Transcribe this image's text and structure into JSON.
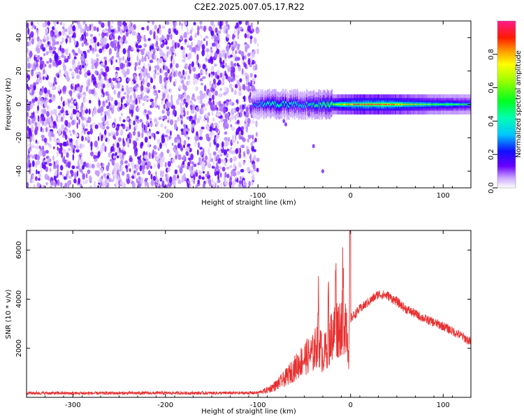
{
  "title": "C2E2.2025.007.05.17.R22",
  "chart_data": [
    {
      "type": "heatmap",
      "xlabel": "Height of straight line (km)",
      "ylabel": "Frequency (Hz)",
      "xlim": [
        -350,
        130
      ],
      "ylim": [
        -50,
        50
      ],
      "x_ticks": [
        -300,
        -200,
        -100,
        0,
        100
      ],
      "y_ticks": [
        -40,
        -20,
        0,
        20,
        40
      ],
      "noise_region_x": [
        -350,
        -100
      ],
      "signal_band_center_hz": 0,
      "signal_band_halfwidth_hz": [
        3,
        8,
        3
      ],
      "signal_profile": {
        "x": [
          -105,
          -90,
          -80,
          -70,
          -60,
          -50,
          -40,
          -30,
          -20,
          -10,
          0,
          20,
          40,
          60,
          80,
          100,
          120,
          130
        ],
        "peak_amplitude": [
          0.3,
          0.45,
          0.5,
          0.4,
          0.45,
          0.4,
          0.5,
          0.55,
          0.6,
          0.75,
          0.85,
          0.95,
          0.9,
          0.8,
          0.65,
          0.55,
          0.5,
          0.5
        ]
      },
      "grid": false,
      "colormap": "rainbow (white-violet-blue-cyan-green-yellow-red-magenta)"
    },
    {
      "type": "colorbar",
      "label": "Normalized spectral amplitude",
      "range": [
        0,
        1
      ],
      "ticks": [
        0.0,
        0.2,
        0.4,
        0.6,
        0.8
      ]
    },
    {
      "type": "line",
      "xlabel": "Height of straight line (km)",
      "ylabel": "SNR (10 * v/v)",
      "xlim": [
        -350,
        130
      ],
      "ylim": [
        0,
        6800
      ],
      "x_ticks": [
        -300,
        -200,
        -100,
        0,
        100
      ],
      "y_ticks": [
        2000,
        4000,
        6000
      ],
      "series": [
        {
          "color": "#e83030",
          "x": [
            -350,
            -300,
            -200,
            -120,
            -100,
            -90,
            -80,
            -70,
            -60,
            -50,
            -40,
            -35,
            -30,
            -25,
            -20,
            -15,
            -10,
            -5,
            -2,
            0,
            10,
            20,
            30,
            40,
            50,
            60,
            80,
            100,
            120,
            130
          ],
          "y": [
            150,
            140,
            150,
            150,
            160,
            300,
            500,
            800,
            1200,
            1600,
            1800,
            2300,
            1700,
            2000,
            2600,
            2800,
            3000,
            3200,
            2000,
            3200,
            3600,
            3900,
            4200,
            4150,
            3900,
            3600,
            3200,
            2900,
            2500,
            2250
          ],
          "spikes": [
            {
              "x": -0.5,
              "y": 6800
            },
            {
              "x": -8,
              "y": 4900
            },
            {
              "x": -16,
              "y": 4700
            },
            {
              "x": -24,
              "y": 4300
            },
            {
              "x": -35,
              "y": 4100
            }
          ]
        }
      ],
      "grid": false
    }
  ]
}
